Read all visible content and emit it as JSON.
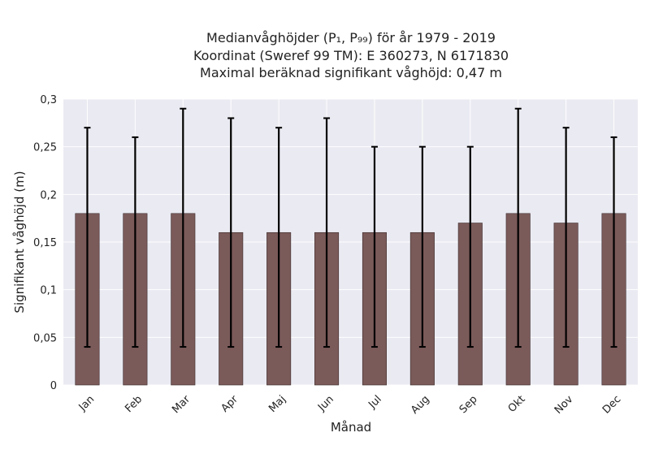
{
  "chart_data": {
    "type": "bar",
    "title_lines": [
      "Medianvåghöjder (P₁, P₉₉) för år 1979 - 2019",
      "Koordinat (Sweref 99 TM): E 360273, N 6171830",
      "Maximal beräknad signifikant våghöjd: 0,47 m"
    ],
    "xlabel": "Månad",
    "ylabel": "Signifikant våghöjd (m)",
    "categories": [
      "Jan",
      "Feb",
      "Mar",
      "Apr",
      "Maj",
      "Jun",
      "Jul",
      "Aug",
      "Sep",
      "Okt",
      "Nov",
      "Dec"
    ],
    "values": [
      0.18,
      0.18,
      0.18,
      0.16,
      0.16,
      0.16,
      0.16,
      0.16,
      0.17,
      0.18,
      0.17,
      0.18
    ],
    "err_low": [
      0.04,
      0.04,
      0.04,
      0.04,
      0.04,
      0.04,
      0.04,
      0.04,
      0.04,
      0.04,
      0.04,
      0.04
    ],
    "err_high": [
      0.27,
      0.26,
      0.29,
      0.28,
      0.27,
      0.28,
      0.25,
      0.25,
      0.25,
      0.29,
      0.27,
      0.26
    ],
    "ylim": [
      0,
      0.3
    ],
    "yticks": [
      0,
      0.05,
      0.1,
      0.15,
      0.2,
      0.25,
      0.3
    ],
    "ytick_labels": [
      "0",
      "0,05",
      "0,1",
      "0,15",
      "0,2",
      "0,25",
      "0,3"
    ],
    "grid": true,
    "colors": {
      "bar": "#7b5a5a",
      "bar_edge": "#3d2e2e",
      "plot_bg": "#eaeaf2",
      "grid": "#ffffff",
      "error": "#000000"
    }
  }
}
